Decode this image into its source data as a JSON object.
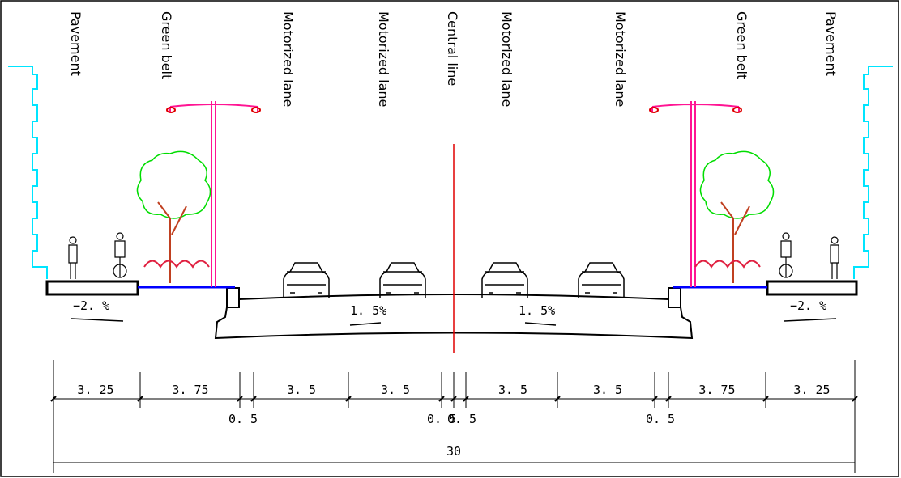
{
  "labels": [
    "Pavement",
    "Green belt",
    "Motorized lane",
    "Motorized lane",
    "Central line",
    "Motorized lane",
    "Motorized lane",
    "Green belt",
    "Pavement"
  ],
  "slopes": [
    "−2. %",
    "1. 5%",
    "1. 5%",
    "−2. %"
  ],
  "dimensions": [
    "3. 25",
    "3. 75",
    "0. 5",
    "3. 5",
    "3. 5",
    "0. 5",
    "0. 5",
    "3. 5",
    "3. 5",
    "0. 5",
    "3. 75",
    "3. 25"
  ],
  "total": "30"
}
